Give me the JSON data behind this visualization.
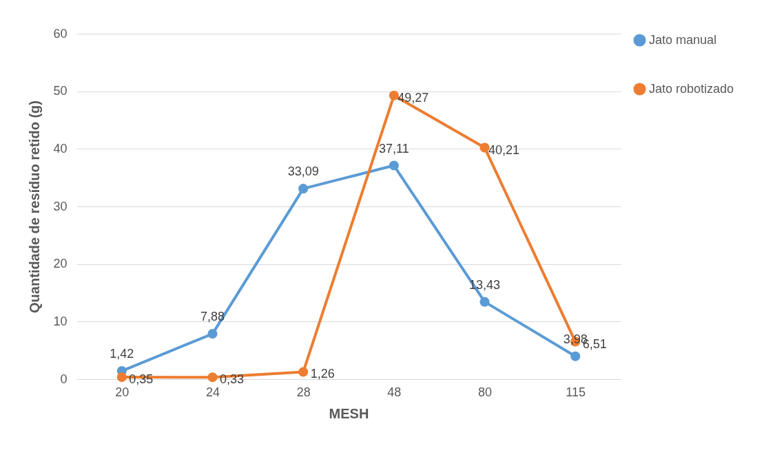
{
  "chart_data": {
    "type": "line",
    "xlabel": "MESH",
    "ylabel": "Quantidade de resíduo retido (g)",
    "categories": [
      "20",
      "24",
      "28",
      "48",
      "80",
      "115"
    ],
    "series": [
      {
        "name": "Jato manual",
        "color": "#5b9bd5",
        "values": [
          1.42,
          7.88,
          33.09,
          37.11,
          13.43,
          3.98
        ],
        "value_labels": [
          "1,42",
          "7,88",
          "33,09",
          "37,11",
          "13,43",
          "3,98"
        ]
      },
      {
        "name": "Jato robotizado",
        "color": "#ed7d31",
        "values": [
          0.35,
          0.33,
          1.26,
          49.27,
          40.21,
          6.51
        ],
        "value_labels": [
          "0,35",
          "0,33",
          "1,26",
          "49,27",
          "40,21",
          "6,51"
        ]
      }
    ],
    "ylim": [
      0,
      60
    ],
    "yticks": [
      0,
      10,
      20,
      30,
      40,
      50,
      60
    ],
    "grid": "y",
    "legend": "right",
    "marker": "circle",
    "line_style": "solid"
  }
}
